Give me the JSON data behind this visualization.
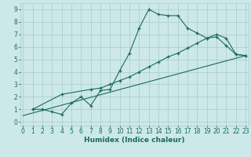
{
  "line1_x": [
    1,
    2,
    3,
    4,
    5,
    6,
    7,
    8,
    9,
    10,
    11,
    12,
    13,
    14,
    15,
    16,
    17,
    18,
    19,
    20,
    21,
    22,
    23
  ],
  "line1_y": [
    1,
    1,
    0.8,
    0.6,
    1.5,
    2.0,
    1.3,
    2.5,
    2.6,
    4.1,
    5.5,
    7.5,
    9.0,
    8.6,
    8.5,
    8.5,
    7.5,
    7.1,
    6.7,
    6.8,
    6.1,
    5.4,
    5.3
  ],
  "line2_x": [
    1,
    4,
    7,
    8,
    9,
    10,
    11,
    12,
    13,
    14,
    15,
    16,
    17,
    18,
    19,
    20,
    21,
    22,
    23
  ],
  "line2_y": [
    1,
    2.2,
    2.6,
    2.7,
    3.0,
    3.3,
    3.6,
    4.0,
    4.4,
    4.8,
    5.2,
    5.5,
    5.9,
    6.3,
    6.7,
    7.0,
    6.7,
    5.4,
    5.3
  ],
  "line3_x": [
    0,
    23
  ],
  "line3_y": [
    0.5,
    5.3
  ],
  "line_color": "#1a6b5a",
  "bg_color": "#cce8e8",
  "grid_color": "#aacaca",
  "xlabel": "Humidex (Indice chaleur)",
  "xlim": [
    -0.3,
    23.3
  ],
  "ylim": [
    -0.3,
    9.5
  ],
  "xticks": [
    0,
    1,
    2,
    3,
    4,
    5,
    6,
    7,
    8,
    9,
    10,
    11,
    12,
    13,
    14,
    15,
    16,
    17,
    18,
    19,
    20,
    21,
    22,
    23
  ],
  "yticks": [
    0,
    1,
    2,
    3,
    4,
    5,
    6,
    7,
    8,
    9
  ],
  "tick_fontsize": 5.5,
  "xlabel_fontsize": 6.5
}
